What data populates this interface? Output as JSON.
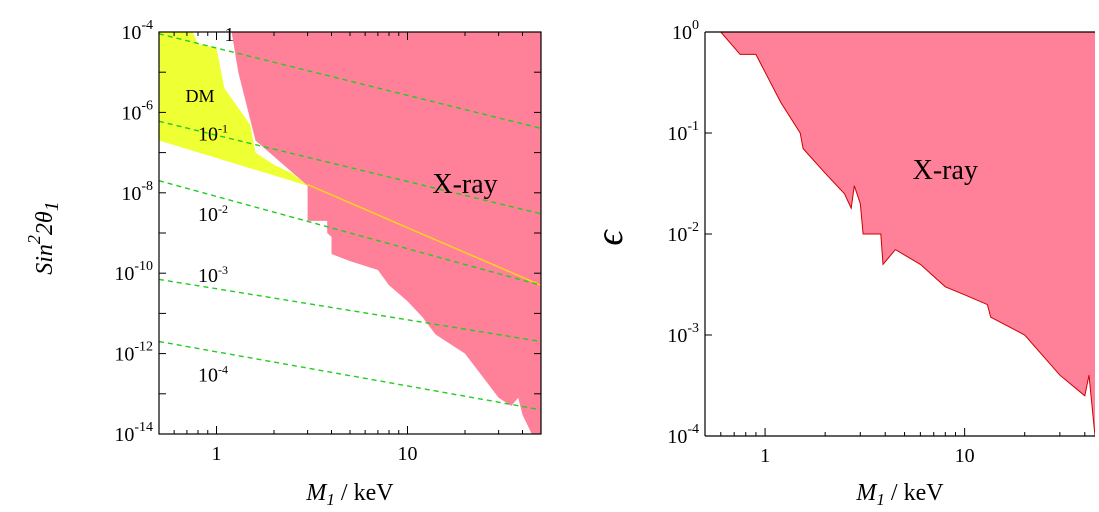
{
  "chart_data": [
    {
      "type": "area",
      "title": "",
      "xlabel_var": "M",
      "xlabel_sub": "1",
      "xlabel_unit": " / keV",
      "ylabel_var": "Sin",
      "ylabel_exp": "2",
      "ylabel_rest": "2θ",
      "ylabel_sub": "1",
      "x_scale": "log",
      "y_scale": "log",
      "xlim": [
        0.5,
        50
      ],
      "ylim": [
        1e-14,
        0.0001
      ],
      "x_ticks": [
        {
          "value": 1,
          "label": "1"
        },
        {
          "value": 10,
          "label": "10"
        }
      ],
      "y_ticks": [
        {
          "value": 0.0001,
          "base": "10",
          "exp": "-4"
        },
        {
          "value": 1e-06,
          "base": "10",
          "exp": "-6"
        },
        {
          "value": 1e-08,
          "base": "10",
          "exp": "-8"
        },
        {
          "value": 1e-10,
          "base": "10",
          "exp": "-10"
        },
        {
          "value": 1e-12,
          "base": "10",
          "exp": "-12"
        },
        {
          "value": 1e-14,
          "base": "10",
          "exp": "-14"
        }
      ],
      "regions": [
        {
          "name": "X-ray",
          "label": "X-ray",
          "label_at": [
            20,
            1e-08
          ],
          "color": "#FF8099",
          "boundary": [
            [
              1.2,
              0.0001
            ],
            [
              1.3,
              1e-05
            ],
            [
              1.6,
              2e-07
            ],
            [
              3.0,
              1.5e-08
            ],
            [
              3.0,
              2e-09
            ],
            [
              3.8,
              2e-09
            ],
            [
              3.8,
              1e-09
            ],
            [
              4.0,
              8e-10
            ],
            [
              4.0,
              3e-10
            ],
            [
              5.0,
              2e-10
            ],
            [
              7.0,
              1.2e-10
            ],
            [
              8.0,
              5e-11
            ],
            [
              10.0,
              2e-11
            ],
            [
              12.0,
              8e-12
            ],
            [
              14.0,
              3e-12
            ],
            [
              20.0,
              1e-12
            ],
            [
              30.0,
              8e-14
            ],
            [
              35.0,
              5e-14
            ],
            [
              38.0,
              8e-14
            ],
            [
              40.0,
              3e-14
            ],
            [
              48.0,
              5e-15
            ],
            [
              50.0,
              1e-15
            ]
          ]
        },
        {
          "name": "DM",
          "label": "DM",
          "label_at": [
            0.82,
            1.8e-06
          ],
          "color": "#EEFF33",
          "boundary": [
            [
              0.5,
              0.0001
            ],
            [
              0.75,
              0.0001
            ],
            [
              0.8,
              5e-05
            ],
            [
              1.0,
              4e-05
            ],
            [
              1.1,
              4e-06
            ],
            [
              1.5,
              5e-07
            ],
            [
              1.6,
              1e-07
            ],
            [
              2.0,
              5e-08
            ],
            [
              2.5,
              3e-08
            ],
            [
              3.0,
              1.5e-08
            ],
            [
              0.5,
              2e-07
            ]
          ]
        }
      ],
      "series": [
        {
          "name": "",
          "style": "solid",
          "color": "#FFD21F",
          "x": [
            3.0,
            50
          ],
          "y": [
            1.6e-08,
            5e-11
          ]
        },
        {
          "name": "",
          "label": "1",
          "style": "dashed",
          "color": "#22CC22",
          "x": [
            0.5,
            50
          ],
          "y": [
            9e-05,
            4e-07
          ]
        },
        {
          "name": "",
          "label": "10",
          "label_exp": "-1",
          "style": "dashed",
          "color": "#22CC22",
          "x": [
            0.5,
            50
          ],
          "y": [
            6e-07,
            3e-09
          ]
        },
        {
          "name": "",
          "label": "10",
          "label_exp": "-2",
          "style": "dashed",
          "color": "#22CC22",
          "x": [
            0.5,
            50
          ],
          "y": [
            2e-08,
            5e-11
          ]
        },
        {
          "name": "",
          "label": "10",
          "label_exp": "-3",
          "style": "dashed",
          "color": "#22CC22",
          "x": [
            0.5,
            50
          ],
          "y": [
            7e-11,
            2e-12
          ]
        },
        {
          "name": "",
          "label": "10",
          "label_exp": "-4",
          "style": "dashed",
          "color": "#22CC22",
          "x": [
            0.5,
            50
          ],
          "y": [
            2e-12,
            4e-14
          ]
        }
      ],
      "line_labels": [
        {
          "base": "1",
          "exp": "",
          "at": [
            1.1,
            6e-05
          ]
        },
        {
          "base": "10",
          "exp": "-1",
          "at": [
            0.8,
            2e-07
          ]
        },
        {
          "base": "10",
          "exp": "-2",
          "at": [
            0.8,
            2e-09
          ]
        },
        {
          "base": "10",
          "exp": "-3",
          "at": [
            0.8,
            6e-11
          ]
        },
        {
          "base": "10",
          "exp": "-4",
          "at": [
            0.8,
            2e-13
          ]
        }
      ]
    },
    {
      "type": "area",
      "title": "",
      "xlabel_var": "M",
      "xlabel_sub": "1",
      "xlabel_unit": " / keV",
      "ylabel": "ϵ",
      "x_scale": "log",
      "y_scale": "log",
      "xlim": [
        0.5,
        45
      ],
      "ylim": [
        0.0001,
        1
      ],
      "x_ticks": [
        {
          "value": 1,
          "label": "1"
        },
        {
          "value": 10,
          "label": "10"
        }
      ],
      "y_ticks": [
        {
          "value": 1,
          "base": "10",
          "exp": "0"
        },
        {
          "value": 0.1,
          "base": "10",
          "exp": "-1"
        },
        {
          "value": 0.01,
          "base": "10",
          "exp": "-2"
        },
        {
          "value": 0.001,
          "base": "10",
          "exp": "-3"
        },
        {
          "value": 0.0001,
          "base": "10",
          "exp": "-4"
        }
      ],
      "regions": [
        {
          "name": "X-ray",
          "label": "X-ray",
          "label_at": [
            8,
            0.035
          ],
          "color": "#FF8099",
          "edge_color": "#CC0000",
          "boundary": [
            [
              0.6,
              1
            ],
            [
              0.75,
              0.6
            ],
            [
              0.9,
              0.6
            ],
            [
              1.0,
              0.4
            ],
            [
              1.2,
              0.2
            ],
            [
              1.5,
              0.1
            ],
            [
              1.55,
              0.07
            ],
            [
              2.0,
              0.04
            ],
            [
              2.5,
              0.025
            ],
            [
              2.7,
              0.018
            ],
            [
              2.8,
              0.03
            ],
            [
              3.0,
              0.02
            ],
            [
              3.1,
              0.01
            ],
            [
              3.8,
              0.01
            ],
            [
              3.9,
              0.005
            ],
            [
              4.5,
              0.007
            ],
            [
              6.0,
              0.005
            ],
            [
              8.0,
              0.003
            ],
            [
              10.0,
              0.0025
            ],
            [
              13.0,
              0.002
            ],
            [
              13.5,
              0.0015
            ],
            [
              20.0,
              0.001
            ],
            [
              30.0,
              0.0004
            ],
            [
              40.0,
              0.00025
            ],
            [
              42.0,
              0.0004
            ],
            [
              45.0,
              0.0001
            ]
          ]
        }
      ],
      "series": []
    }
  ]
}
